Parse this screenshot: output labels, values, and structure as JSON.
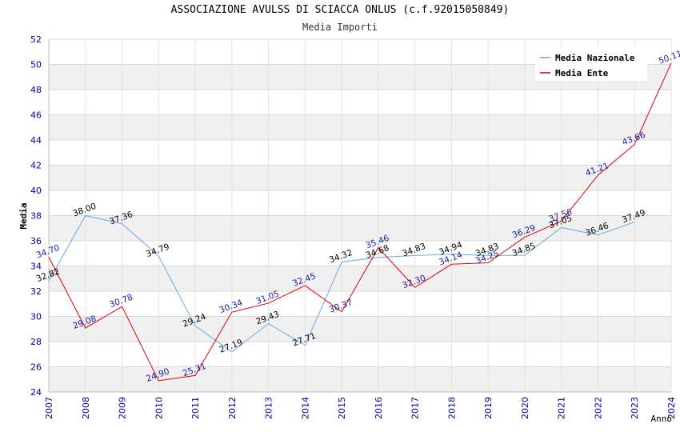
{
  "header": {
    "title": "ASSOCIAZIONE AVULSS DI SCIACCA ONLUS (c.f.92015050849)",
    "subtitle": "Media Importi"
  },
  "chart_data": {
    "type": "line",
    "title": "ASSOCIAZIONE AVULSS DI SCIACCA ONLUS (c.f.92015050849)",
    "subtitle": "Media Importi",
    "xlabel": "Anno",
    "ylabel": "Media",
    "x": [
      "2007",
      "2008",
      "2009",
      "2010",
      "2011",
      "2012",
      "2013",
      "2014",
      "2015",
      "2016",
      "2017",
      "2018",
      "2019",
      "2020",
      "2021",
      "2022",
      "2023",
      "2024"
    ],
    "ylim": [
      24,
      52
    ],
    "yticks": [
      24,
      26,
      28,
      30,
      32,
      34,
      36,
      38,
      40,
      42,
      44,
      46,
      48,
      50,
      52
    ],
    "ytick_labels": [
      "24",
      "26",
      "28",
      "30",
      "32",
      "34",
      "36",
      "38",
      "40",
      "42",
      "44",
      "46",
      "48",
      "50",
      "52"
    ],
    "grid": true,
    "legend_position": "top-right",
    "series": [
      {
        "name": "Media Nazionale",
        "color": "#6aa8e0",
        "label_color": "#000000",
        "values": [
          32.82,
          38.0,
          37.36,
          34.79,
          29.24,
          27.19,
          29.43,
          27.71,
          34.32,
          34.68,
          34.83,
          34.94,
          34.83,
          34.85,
          37.05,
          36.46,
          37.49,
          null
        ],
        "labels": [
          "32.82",
          "38.00",
          "37.36",
          "34.79",
          "29.24",
          "27.19",
          "29.43",
          "27.71",
          "34.32",
          "34.68",
          "34.83",
          "34.94",
          "34.83",
          "34.85",
          "37.05",
          "36.46",
          "37.49",
          ""
        ]
      },
      {
        "name": "Media Ente",
        "color": "#e00000",
        "label_color": "#1a1aa0",
        "values": [
          34.7,
          29.08,
          30.78,
          24.9,
          25.31,
          30.34,
          31.05,
          32.45,
          30.37,
          35.46,
          32.3,
          34.14,
          34.25,
          36.29,
          37.56,
          41.21,
          43.66,
          50.11
        ],
        "labels": [
          "34.70",
          "29.08",
          "30.78",
          "24.90",
          "25.31",
          "30.34",
          "31.05",
          "32.45",
          "30.37",
          "35.46",
          "32.30",
          "34.14",
          "34.25",
          "36.29",
          "37.56",
          "41.21",
          "43.66",
          "50.11"
        ]
      }
    ]
  }
}
